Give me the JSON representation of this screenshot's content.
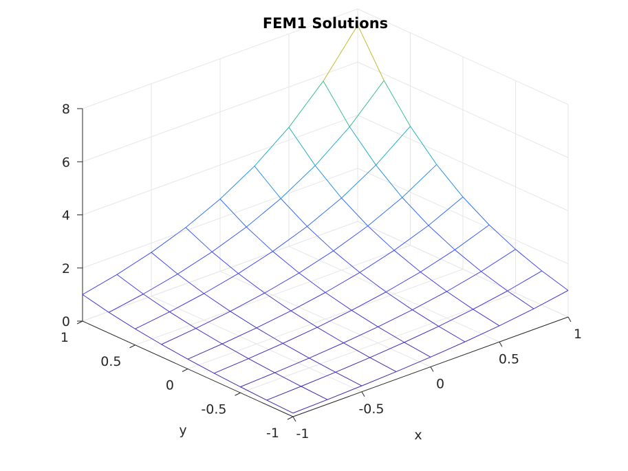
{
  "chart_data": {
    "type": "surface-mesh",
    "title": "FEM1 Solutions",
    "xlabel": "x",
    "ylabel": "y",
    "zlabel": "",
    "xlim": [
      -1,
      1
    ],
    "ylim": [
      -1,
      1
    ],
    "zlim": [
      0,
      8
    ],
    "grid": true,
    "xticks": [
      -1,
      -0.5,
      0,
      0.5,
      1
    ],
    "yticks": [
      -1,
      -0.5,
      0,
      0.5,
      1
    ],
    "zticks": [
      0,
      2,
      4,
      6,
      8
    ],
    "xtick_labels": [
      "-1",
      "-0.5",
      "0",
      "0.5",
      "1"
    ],
    "ytick_labels": [
      "-1",
      "-0.5",
      "0",
      "0.5",
      "1"
    ],
    "ztick_labels": [
      "0",
      "2",
      "4",
      "6",
      "8"
    ],
    "mesh": {
      "x": [
        -1,
        -0.75,
        -0.5,
        -0.25,
        0,
        0.25,
        0.5,
        0.75,
        1
      ],
      "y": [
        -1,
        -0.75,
        -0.5,
        -0.25,
        0,
        0.25,
        0.5,
        0.75,
        1
      ],
      "z_function": "exp(x + y)",
      "z_range": [
        0.135,
        7.389
      ]
    },
    "colormap": [
      "#3e26a8",
      "#4743f5",
      "#2f76f6",
      "#1ea9d4",
      "#2bc098",
      "#a7bf32",
      "#f2b52b"
    ]
  }
}
